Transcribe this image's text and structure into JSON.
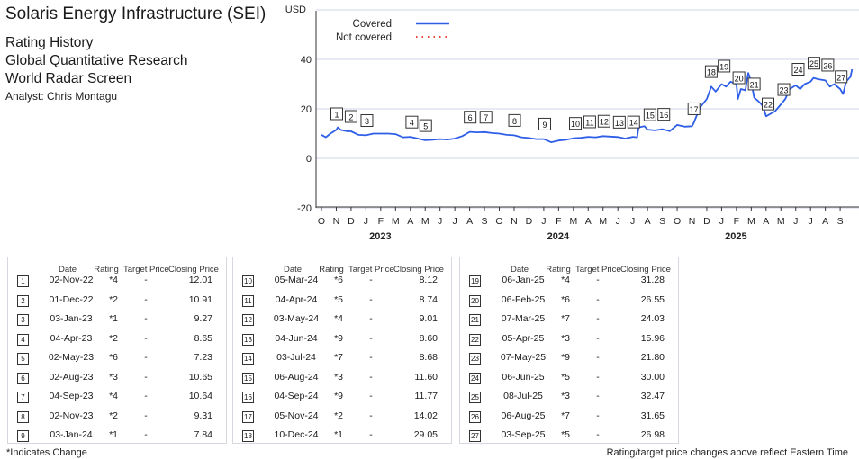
{
  "header": {
    "title": "Solaris Energy Infrastructure (SEI)",
    "lines": [
      "Rating History",
      "Global Quantitative Research",
      "World Radar Screen"
    ],
    "analyst": "Analyst: Chris Montagu"
  },
  "chart_data": {
    "type": "line",
    "ylabel": "USD",
    "ylim": [
      -20,
      60
    ],
    "yticks": [
      -20,
      0,
      20,
      40
    ],
    "xlabel_months": [
      "O",
      "N",
      "D",
      "J",
      "F",
      "M",
      "A",
      "M",
      "J",
      "J",
      "A",
      "S",
      "O",
      "N",
      "D",
      "J",
      "F",
      "M",
      "A",
      "M",
      "J",
      "J",
      "A",
      "S",
      "O",
      "N",
      "D",
      "J",
      "F",
      "M",
      "A",
      "M",
      "J",
      "J",
      "A",
      "S"
    ],
    "year_labels": [
      {
        "label": "2023",
        "month_index": 3
      },
      {
        "label": "2024",
        "month_index": 15
      },
      {
        "label": "2025",
        "month_index": 27
      }
    ],
    "start": "Oct-2022",
    "legend": [
      {
        "label": "Covered",
        "color": "#2e5ee8",
        "style": "solid"
      },
      {
        "label": "Not covered",
        "color": "#e8463a",
        "style": "dotted"
      }
    ],
    "legend_position": "top-left",
    "series": [
      {
        "name": "Covered",
        "points": [
          [
            0,
            9.5
          ],
          [
            0.3,
            8.5
          ],
          [
            0.6,
            10
          ],
          [
            1,
            11.5
          ],
          [
            1.1,
            12.5
          ],
          [
            1.3,
            11.5
          ],
          [
            1.7,
            11
          ],
          [
            2,
            10.9
          ],
          [
            2.5,
            9.5
          ],
          [
            3,
            9.3
          ],
          [
            3.5,
            10
          ],
          [
            4,
            10
          ],
          [
            4.5,
            10
          ],
          [
            5,
            9.8
          ],
          [
            5.5,
            8.5
          ],
          [
            6,
            8.7
          ],
          [
            6.5,
            8
          ],
          [
            7,
            7.3
          ],
          [
            7.5,
            7.5
          ],
          [
            8,
            7.8
          ],
          [
            8.5,
            7.6
          ],
          [
            9,
            8
          ],
          [
            9.5,
            9
          ],
          [
            10,
            10.7
          ],
          [
            10.5,
            10.5
          ],
          [
            11,
            10.6
          ],
          [
            11.5,
            10.2
          ],
          [
            12,
            10
          ],
          [
            12.5,
            9.5
          ],
          [
            13,
            9.3
          ],
          [
            13.5,
            8.5
          ],
          [
            14,
            8.2
          ],
          [
            14.5,
            7.8
          ],
          [
            15,
            7.8
          ],
          [
            15.5,
            6.5
          ],
          [
            16,
            7.2
          ],
          [
            16.5,
            7.5
          ],
          [
            17,
            8.1
          ],
          [
            17.5,
            8.3
          ],
          [
            18,
            8.7
          ],
          [
            18.5,
            8.5
          ],
          [
            19,
            9
          ],
          [
            19.5,
            8.8
          ],
          [
            20,
            8.6
          ],
          [
            20.5,
            8
          ],
          [
            21,
            8.7
          ],
          [
            21.3,
            8.5
          ],
          [
            21.4,
            12.5
          ],
          [
            21.8,
            13
          ],
          [
            22,
            11.6
          ],
          [
            22.5,
            11.3
          ],
          [
            23,
            11.8
          ],
          [
            23.5,
            11
          ],
          [
            24,
            13.5
          ],
          [
            24.5,
            12.8
          ],
          [
            25,
            13
          ],
          [
            25.1,
            14
          ],
          [
            25.3,
            17
          ],
          [
            25.6,
            21
          ],
          [
            26,
            24
          ],
          [
            26.3,
            29
          ],
          [
            26.6,
            27
          ],
          [
            27,
            30
          ],
          [
            27.3,
            29
          ],
          [
            27.6,
            31
          ],
          [
            28,
            30
          ],
          [
            28.1,
            24
          ],
          [
            28.3,
            28
          ],
          [
            28.6,
            27.5
          ],
          [
            28.8,
            34.5
          ],
          [
            29,
            31
          ],
          [
            29.2,
            24.5
          ],
          [
            29.5,
            23
          ],
          [
            29.8,
            21
          ],
          [
            30,
            17
          ],
          [
            30.3,
            18
          ],
          [
            30.6,
            19
          ],
          [
            31,
            21.8
          ],
          [
            31.3,
            24
          ],
          [
            31.6,
            28
          ],
          [
            32,
            29.5
          ],
          [
            32.3,
            28
          ],
          [
            32.6,
            30
          ],
          [
            33,
            31
          ],
          [
            33.2,
            32.5
          ],
          [
            33.5,
            32
          ],
          [
            34,
            31.5
          ],
          [
            34.3,
            29
          ],
          [
            34.6,
            30
          ],
          [
            35,
            28
          ],
          [
            35.2,
            26
          ],
          [
            35.4,
            31
          ],
          [
            35.7,
            33
          ],
          [
            35.8,
            36
          ]
        ]
      }
    ]
  },
  "tables": [
    {
      "headers": [
        "Date",
        "Rating",
        "Target Price",
        "Closing Price"
      ],
      "rows": [
        [
          "1",
          "02-Nov-22",
          "*4",
          "-",
          "12.01"
        ],
        [
          "2",
          "01-Dec-22",
          "*2",
          "-",
          "10.91"
        ],
        [
          "3",
          "03-Jan-23",
          "*1",
          "-",
          "9.27"
        ],
        [
          "4",
          "04-Apr-23",
          "*2",
          "-",
          "8.65"
        ],
        [
          "5",
          "02-May-23",
          "*6",
          "-",
          "7.23"
        ],
        [
          "6",
          "02-Aug-23",
          "*3",
          "-",
          "10.65"
        ],
        [
          "7",
          "04-Sep-23",
          "*4",
          "-",
          "10.64"
        ],
        [
          "8",
          "02-Nov-23",
          "*2",
          "-",
          "9.31"
        ],
        [
          "9",
          "03-Jan-24",
          "*1",
          "-",
          "7.84"
        ]
      ]
    },
    {
      "headers": [
        "Date",
        "Rating",
        "Target Price",
        "Closing Price"
      ],
      "rows": [
        [
          "10",
          "05-Mar-24",
          "*6",
          "-",
          "8.12"
        ],
        [
          "11",
          "04-Apr-24",
          "*5",
          "-",
          "8.74"
        ],
        [
          "12",
          "03-May-24",
          "*4",
          "-",
          "9.01"
        ],
        [
          "13",
          "04-Jun-24",
          "*9",
          "-",
          "8.60"
        ],
        [
          "14",
          "03-Jul-24",
          "*7",
          "-",
          "8.68"
        ],
        [
          "15",
          "06-Aug-24",
          "*3",
          "-",
          "11.60"
        ],
        [
          "16",
          "04-Sep-24",
          "*9",
          "-",
          "11.77"
        ],
        [
          "17",
          "05-Nov-24",
          "*2",
          "-",
          "14.02"
        ],
        [
          "18",
          "10-Dec-24",
          "*1",
          "-",
          "29.05"
        ]
      ]
    },
    {
      "headers": [
        "Date",
        "Rating",
        "Target Price",
        "Closing Price"
      ],
      "rows": [
        [
          "19",
          "06-Jan-25",
          "*4",
          "-",
          "31.28"
        ],
        [
          "20",
          "06-Feb-25",
          "*6",
          "-",
          "26.55"
        ],
        [
          "21",
          "07-Mar-25",
          "*7",
          "-",
          "24.03"
        ],
        [
          "22",
          "05-Apr-25",
          "*3",
          "-",
          "15.96"
        ],
        [
          "23",
          "07-May-25",
          "*9",
          "-",
          "21.80"
        ],
        [
          "24",
          "06-Jun-25",
          "*5",
          "-",
          "30.00"
        ],
        [
          "25",
          "08-Jul-25",
          "*3",
          "-",
          "32.47"
        ],
        [
          "26",
          "06-Aug-25",
          "*7",
          "-",
          "31.65"
        ],
        [
          "27",
          "03-Sep-25",
          "*5",
          "-",
          "26.98"
        ]
      ]
    }
  ],
  "footer": {
    "left": "*Indicates Change",
    "right": "Rating/target price changes above reflect Eastern Time"
  }
}
